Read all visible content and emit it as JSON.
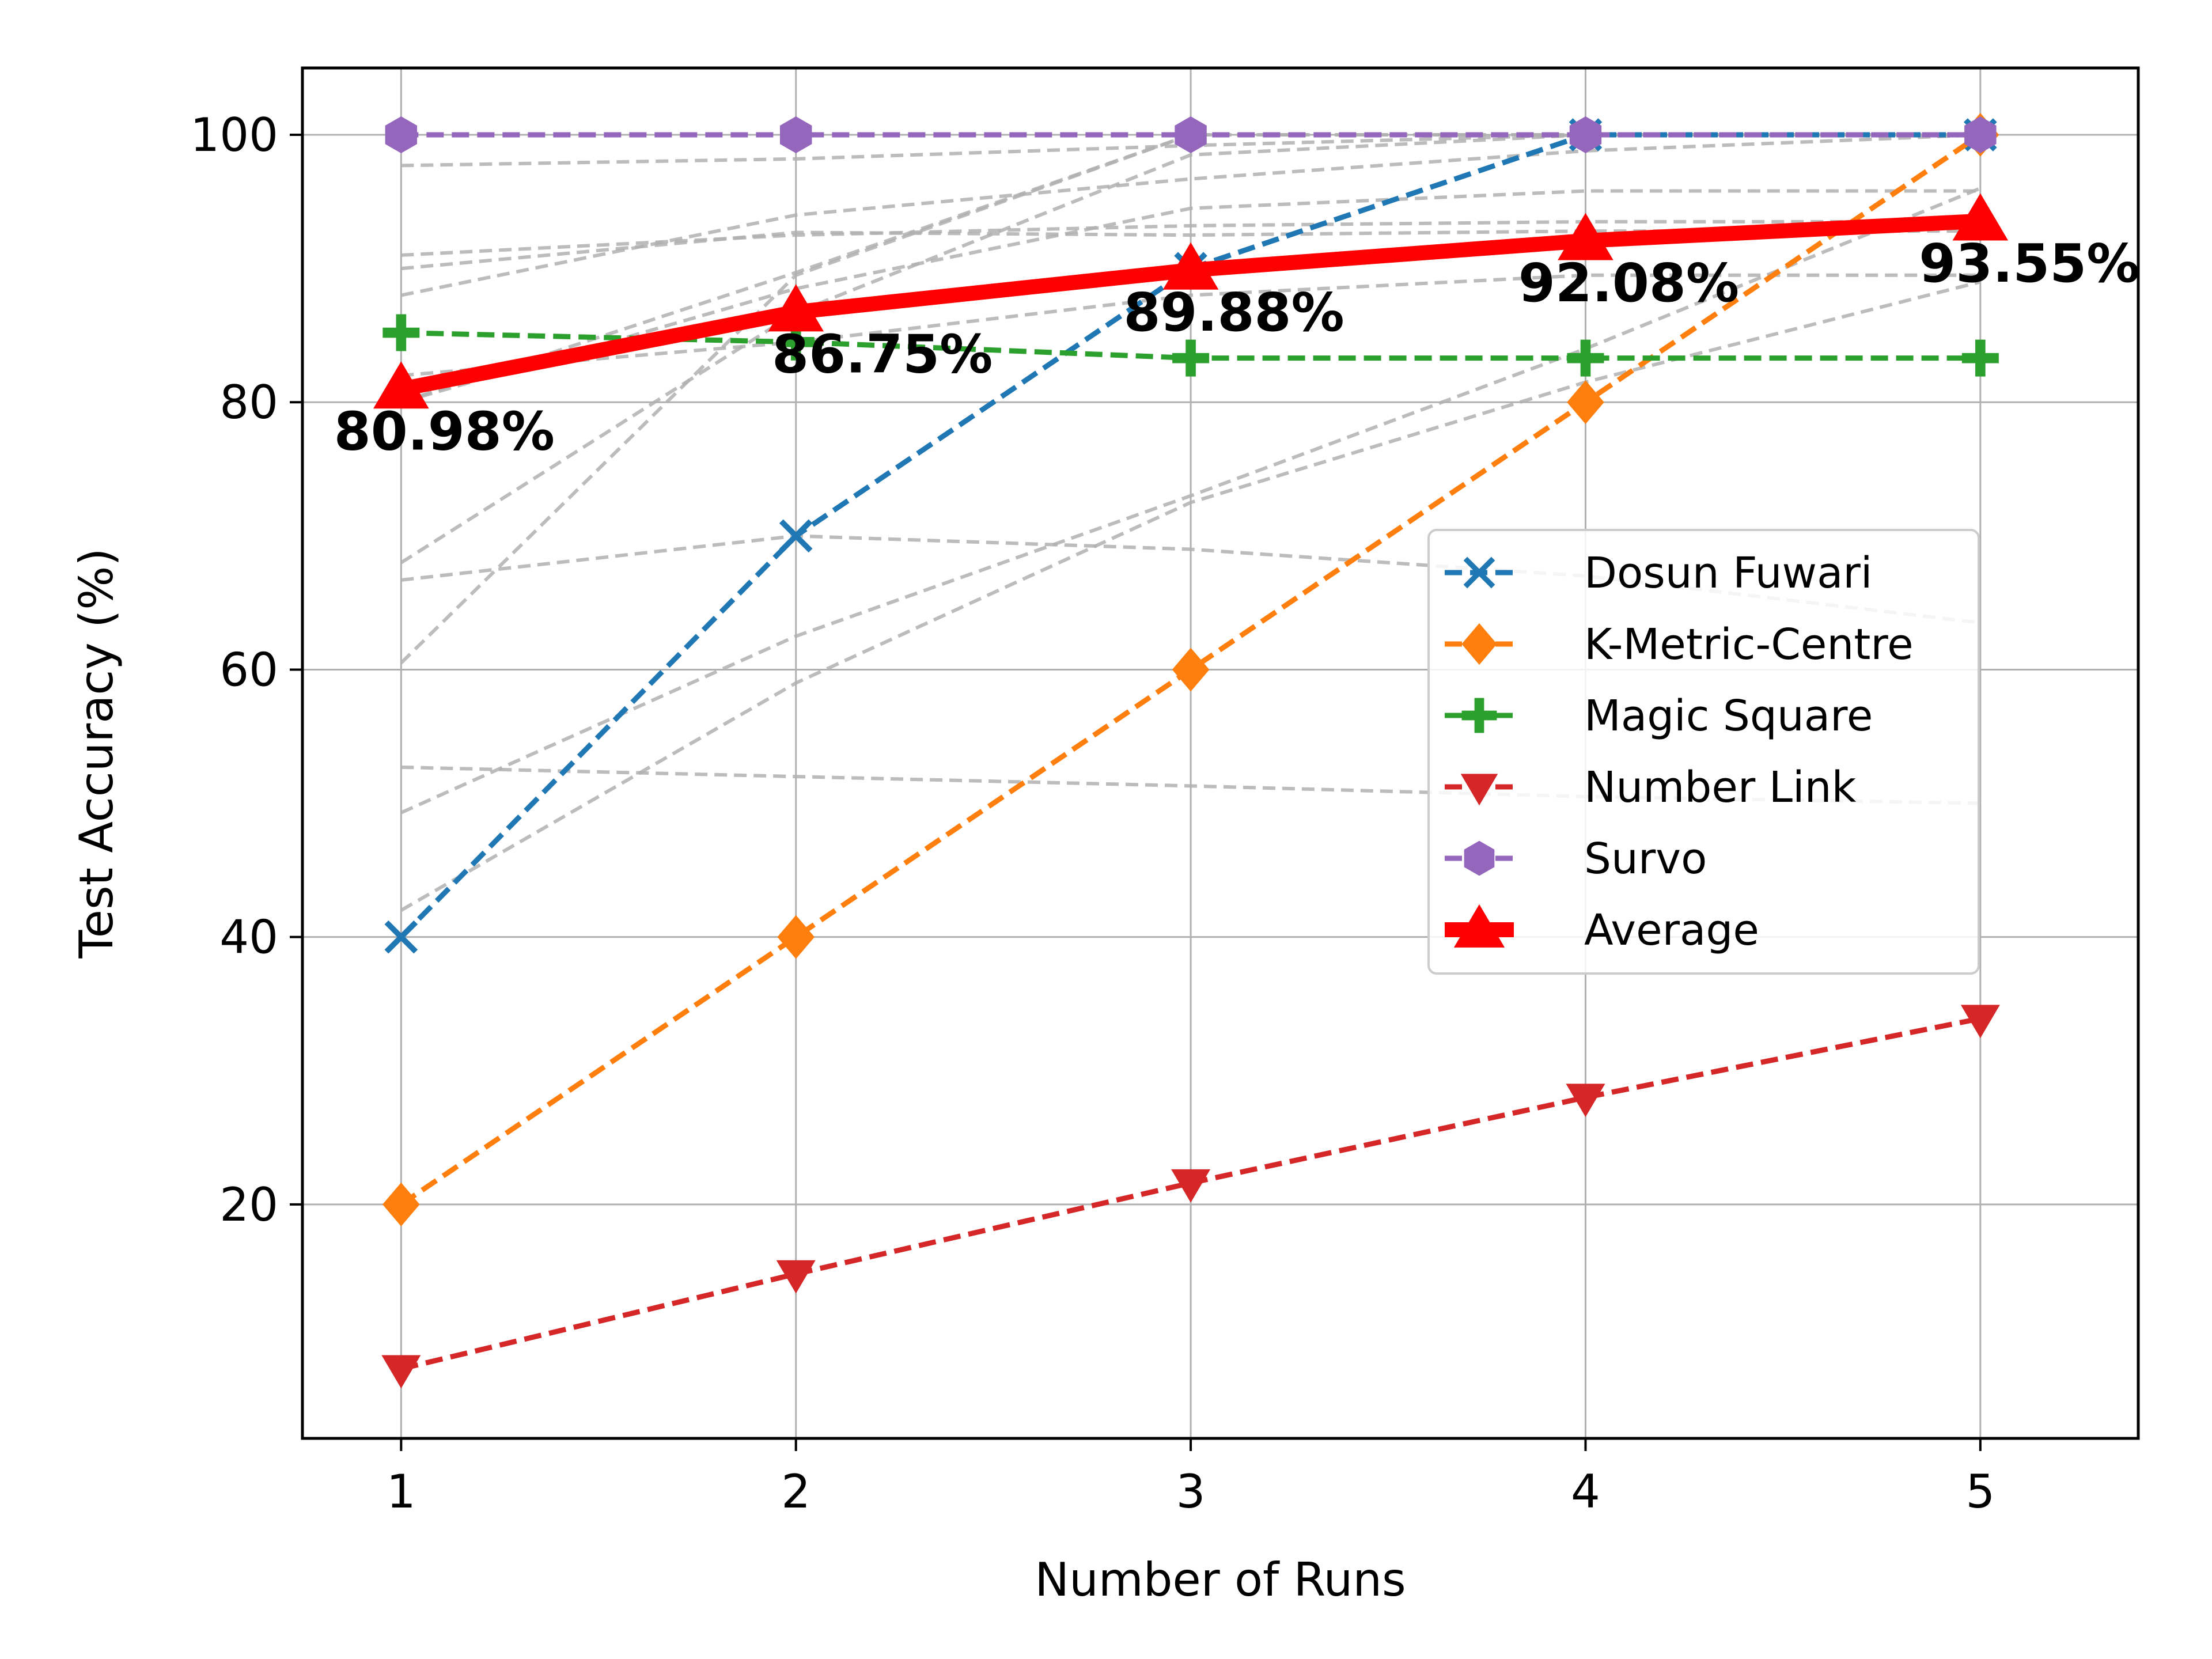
{
  "chart_data": {
    "type": "line",
    "title": "",
    "xlabel": "Number of Runs",
    "ylabel": "Test Accuracy (%)",
    "x": [
      1,
      2,
      3,
      4,
      5
    ],
    "xlim": [
      0.75,
      5.4
    ],
    "ylim": [
      2.5,
      105
    ],
    "xticks": [
      "1",
      "2",
      "3",
      "4",
      "5"
    ],
    "yticks": [
      "20",
      "40",
      "60",
      "80",
      "100"
    ],
    "grid": true,
    "legend_position": "center-right",
    "series": [
      {
        "name": "Dosun Fuwari",
        "values": [
          40,
          70,
          90,
          100,
          100
        ],
        "color": "#1f77b4",
        "marker": "x-icon"
      },
      {
        "name": "K-Metric-Centre",
        "values": [
          20,
          40,
          60,
          80,
          100
        ],
        "color": "#ff7f0e",
        "marker": "diamond-icon"
      },
      {
        "name": "Magic Square",
        "values": [
          85.2,
          84.5,
          83.3,
          83.3,
          83.3
        ],
        "color": "#2ca02c",
        "marker": "plus-icon"
      },
      {
        "name": "Number Link",
        "values": [
          7.7,
          14.8,
          21.6,
          28.0,
          33.9
        ],
        "color": "#d62728",
        "marker": "triangle-down-icon"
      },
      {
        "name": "Survo",
        "values": [
          100,
          100,
          100,
          100,
          100
        ],
        "color": "#9467bd",
        "marker": "hexagon-icon"
      },
      {
        "name": "Average",
        "values": [
          80.98,
          86.75,
          89.88,
          92.08,
          93.55
        ],
        "color": "#ff0000",
        "marker": "triangle-up-icon"
      }
    ],
    "background_series_color": "#b0b0b0",
    "background_series": [
      [
        97.7,
        98.2,
        99.2,
        100,
        100
      ],
      [
        91.0,
        92.5,
        93.2,
        93.5,
        93.5
      ],
      [
        88.0,
        94.0,
        96.7,
        98.8,
        100
      ],
      [
        90.0,
        92.7,
        92.5,
        92.8,
        92.8
      ],
      [
        80.0,
        89.7,
        100,
        100,
        100
      ],
      [
        68.0,
        86.7,
        98.5,
        100,
        100
      ],
      [
        60.5,
        89.5,
        100,
        100,
        100
      ],
      [
        66.7,
        70.0,
        69.0,
        67.0,
        63.5
      ],
      [
        52.7,
        52.0,
        51.3,
        50.5,
        50.0
      ],
      [
        49.3,
        62.5,
        73.0,
        84.0,
        96.0
      ],
      [
        42.0,
        59.0,
        72.5,
        81.5,
        89.0
      ],
      [
        80.0,
        88.5,
        94.5,
        95.8,
        95.8
      ],
      [
        82.0,
        84.5,
        88.0,
        89.5,
        89.5
      ]
    ],
    "annotations": [
      "80.98%",
      "86.75%",
      "89.88%",
      "92.08%",
      "93.55%"
    ]
  }
}
